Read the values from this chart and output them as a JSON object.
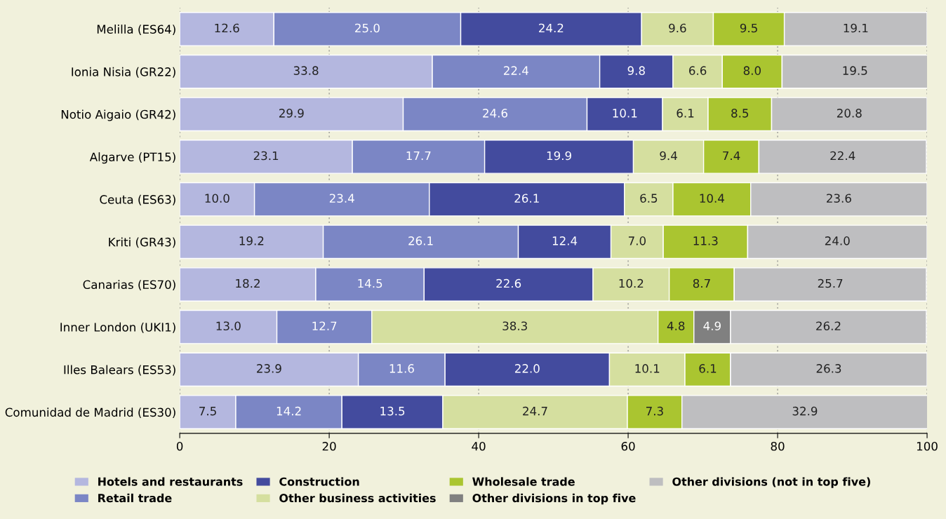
{
  "chart_data": {
    "type": "bar",
    "orientation": "horizontal",
    "stacked": true,
    "categories": [
      "Melilla (ES64)",
      "Ionia Nisia (GR22)",
      "Notio Aigaio (GR42)",
      "Algarve (PT15)",
      "Ceuta (ES63)",
      "Kriti (GR43)",
      "Canarias (ES70)",
      "Inner London (UKI1)",
      "Illes Balears (ES53)",
      "Comunidad de Madrid (ES30)"
    ],
    "series": [
      {
        "name": "Hotels and restaurants",
        "color": "#b4b7df",
        "values": [
          12.6,
          33.8,
          29.9,
          23.1,
          10.0,
          19.2,
          18.2,
          13.0,
          23.9,
          7.5
        ],
        "value_labels": [
          "12.6",
          "33.8",
          "29.9",
          "23.1",
          "10.0",
          "19.2",
          "18.2",
          "13.0",
          "23.9",
          "7.5"
        ]
      },
      {
        "name": "Retail trade",
        "color": "#7b86c5",
        "values": [
          25.0,
          22.4,
          24.6,
          17.7,
          23.4,
          26.1,
          14.5,
          12.7,
          11.6,
          14.2
        ],
        "value_labels": [
          "25.0",
          "22.4",
          "24.6",
          "17.7",
          "23.4",
          "26.1",
          "14.5",
          "12.7",
          "11.6",
          "14.2"
        ]
      },
      {
        "name": "Construction",
        "color": "#434b9e",
        "values": [
          24.2,
          9.8,
          10.1,
          19.9,
          26.1,
          12.4,
          22.6,
          null,
          22.0,
          13.5
        ],
        "value_labels": [
          "24.2",
          "9.8",
          "10.1",
          "19.9",
          "26.1",
          "12.4",
          "22.6",
          null,
          "22.0",
          "13.5"
        ]
      },
      {
        "name": "Other business activities",
        "color": "#d5df9f",
        "values": [
          9.6,
          6.6,
          6.1,
          9.4,
          6.5,
          7.0,
          10.2,
          38.3,
          10.1,
          24.7
        ],
        "value_labels": [
          "9.6",
          "6.6",
          "6.1",
          "9.4",
          "6.5",
          "7.0",
          "10.2",
          "38.3",
          "10.1",
          "24.7"
        ]
      },
      {
        "name": "Wholesale trade",
        "color": "#aac530",
        "values": [
          9.5,
          8.0,
          8.5,
          7.4,
          10.4,
          11.3,
          8.7,
          4.8,
          6.1,
          7.3
        ],
        "value_labels": [
          "9.5",
          "8.0",
          "8.5",
          "7.4",
          "10.4",
          "11.3",
          "8.7",
          "4.8",
          "6.1",
          "7.3"
        ]
      },
      {
        "name": "Other divisions in top five",
        "color": "#808080",
        "values": [
          null,
          null,
          null,
          null,
          null,
          null,
          null,
          4.9,
          null,
          null
        ],
        "value_labels": [
          null,
          null,
          null,
          null,
          null,
          null,
          null,
          "4.9",
          null,
          null
        ]
      },
      {
        "name": "Other divisions (not in top five)",
        "color": "#bebec0",
        "values": [
          19.1,
          19.5,
          20.8,
          22.4,
          23.6,
          24.0,
          25.7,
          26.2,
          26.3,
          32.9
        ],
        "value_labels": [
          "19.1",
          "19.5",
          "20.8",
          "22.4",
          "23.6",
          "24.0",
          "25.7",
          "26.2",
          "26.3",
          "32.9"
        ]
      }
    ],
    "xlim": [
      0,
      100
    ],
    "xticks": [
      0,
      20,
      40,
      60,
      80,
      100
    ],
    "grid": "x",
    "legend": "bottom"
  }
}
